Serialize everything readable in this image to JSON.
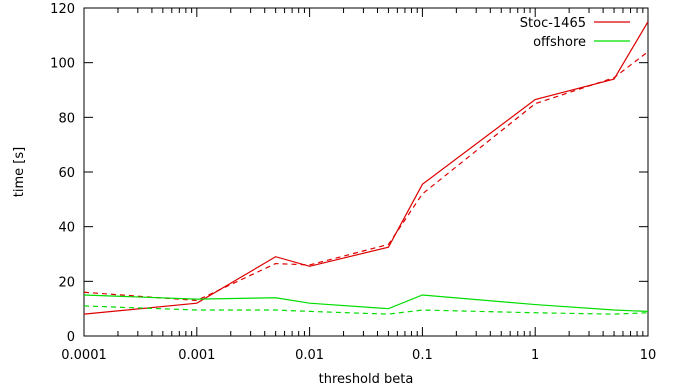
{
  "chart_data": {
    "type": "line",
    "xlabel": "threshold beta",
    "ylabel": "time [s]",
    "xscale": "log",
    "xlim": [
      0.0001,
      10
    ],
    "ylim": [
      0,
      120
    ],
    "x_ticks": [
      {
        "value": 0.0001,
        "label": "0.0001"
      },
      {
        "value": 0.001,
        "label": "0.001"
      },
      {
        "value": 0.01,
        "label": "0.01"
      },
      {
        "value": 0.1,
        "label": "0.1"
      },
      {
        "value": 1,
        "label": "1"
      },
      {
        "value": 10,
        "label": "10"
      }
    ],
    "y_ticks": [
      {
        "value": 0,
        "label": "0"
      },
      {
        "value": 20,
        "label": "20"
      },
      {
        "value": 40,
        "label": "40"
      },
      {
        "value": 60,
        "label": "60"
      },
      {
        "value": 80,
        "label": "80"
      },
      {
        "value": 100,
        "label": "100"
      },
      {
        "value": 120,
        "label": "120"
      }
    ],
    "grid": false,
    "legend_position": "top-right",
    "series": [
      {
        "name": "Stoc-1465",
        "color": "#dd0000",
        "dash": "solid",
        "x": [
          0.0001,
          0.001,
          0.005,
          0.01,
          0.05,
          0.1,
          1,
          5,
          10
        ],
        "values": [
          8,
          12,
          29,
          25.5,
          32.5,
          55.5,
          86.5,
          94,
          115
        ]
      },
      {
        "color": "#dd0000",
        "dash": "dashed",
        "x": [
          0.0001,
          0.001,
          0.005,
          0.01,
          0.05,
          0.1,
          1,
          5,
          10
        ],
        "values": [
          16,
          13,
          26.5,
          26,
          33.5,
          52,
          85,
          94.5,
          104
        ]
      },
      {
        "name": "offshore",
        "color": "#00dd00",
        "dash": "solid",
        "x": [
          0.0001,
          0.001,
          0.005,
          0.01,
          0.05,
          0.1,
          1,
          5,
          10
        ],
        "values": [
          15,
          13.5,
          14,
          12,
          10,
          15,
          11.5,
          9.5,
          9
        ]
      },
      {
        "color": "#00dd00",
        "dash": "dashed",
        "x": [
          0.0001,
          0.001,
          0.005,
          0.01,
          0.05,
          0.1,
          1,
          5,
          10
        ],
        "values": [
          11,
          9.5,
          9.5,
          9,
          8,
          9.5,
          8.5,
          8,
          8.5
        ]
      }
    ]
  }
}
